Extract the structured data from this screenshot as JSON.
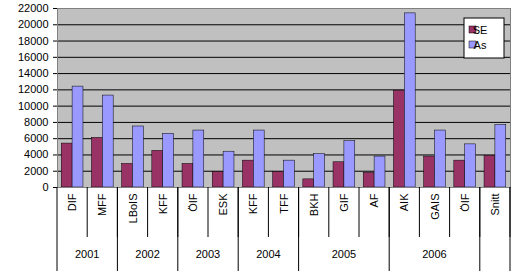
{
  "chart_data": {
    "type": "bar",
    "categories": [
      "DIF",
      "MFF",
      "LBoIS",
      "KFF",
      "ÖIF",
      "ESK",
      "KFF",
      "TFF",
      "BKH",
      "GIF",
      "AF",
      "AIK",
      "GAIS",
      "ÖIF",
      "Snitt"
    ],
    "category_groups": [
      "2001",
      "2001",
      "2002",
      "2002",
      "2003",
      "2003",
      "2004",
      "2004",
      "2005",
      "2005",
      "2005",
      "2006",
      "2006",
      "2006",
      null
    ],
    "series": [
      {
        "name": "SE",
        "color": "#993366",
        "values": [
          5400,
          6100,
          2900,
          4500,
          2900,
          1900,
          3300,
          1900,
          1000,
          3100,
          1800,
          11900,
          3800,
          3300,
          3900
        ]
      },
      {
        "name": "As",
        "color": "#9999ff",
        "values": [
          12400,
          11300,
          7500,
          6600,
          7000,
          4400,
          7000,
          3300,
          4100,
          5700,
          3800,
          21400,
          7000,
          5300,
          7700
        ]
      }
    ],
    "ylim": [
      0,
      22000
    ],
    "yticks": [
      0,
      2000,
      4000,
      6000,
      8000,
      10000,
      12000,
      14000,
      16000,
      18000,
      20000,
      22000
    ],
    "grid": true,
    "legend": "top-right"
  }
}
